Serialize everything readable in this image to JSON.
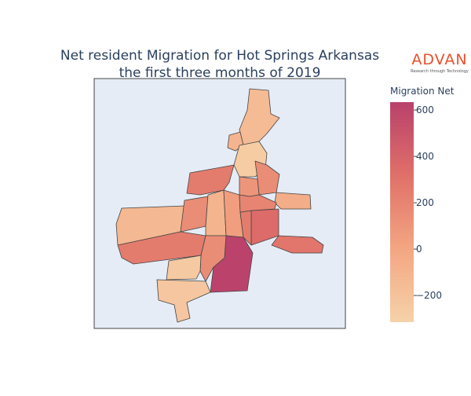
{
  "chart_data": {
    "type": "choropleth",
    "title": [
      "Net resident Migration for Hot Springs Arkansas",
      "the first three months of 2019"
    ],
    "logo": {
      "name": "ADVAN",
      "tagline": "Research through Technology"
    },
    "colorbar_title": "Migration Net",
    "clim": [
      -315,
      634
    ],
    "cticks": [
      {
        "value": -200,
        "label": "−200"
      },
      0,
      200,
      400,
      600
    ],
    "colorscale": [
      "#f6d2a9",
      "#f3a682",
      "#e07069",
      "#b9416b"
    ],
    "values": [
      -150,
      -100,
      -270,
      250,
      150,
      100,
      -50,
      -130,
      150,
      -100,
      50,
      350,
      280,
      250,
      250,
      620,
      150,
      -250,
      -230,
      200
    ]
  }
}
